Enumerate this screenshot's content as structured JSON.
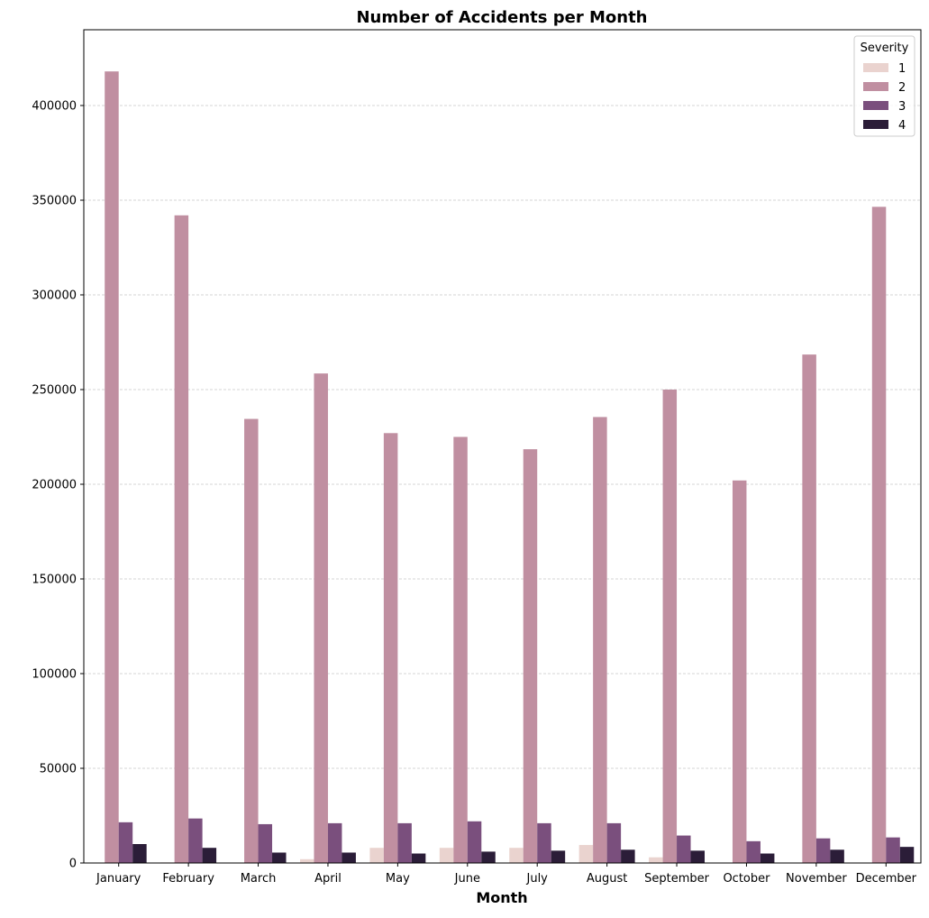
{
  "chart_data": {
    "type": "bar",
    "title": "Number of Accidents per Month",
    "xlabel": "Month",
    "ylabel": "",
    "categories": [
      "January",
      "February",
      "March",
      "April",
      "May",
      "June",
      "July",
      "August",
      "September",
      "October",
      "November",
      "December"
    ],
    "legend_title": "Severity",
    "legend_position": "top-right",
    "ylim": [
      0,
      440000
    ],
    "yticks": [
      0,
      50000,
      100000,
      150000,
      200000,
      250000,
      300000,
      350000,
      400000
    ],
    "grid": "horizontal dashed",
    "series": [
      {
        "name": "1",
        "color": "#ead3cf",
        "values": [
          200,
          300,
          100,
          2000,
          8000,
          8000,
          8000,
          9500,
          3000,
          100,
          100,
          100
        ]
      },
      {
        "name": "2",
        "color": "#c08fa1",
        "values": [
          418000,
          342000,
          234500,
          258500,
          227000,
          225000,
          218500,
          235500,
          250000,
          202000,
          268500,
          346500
        ]
      },
      {
        "name": "3",
        "color": "#7a4f7d",
        "values": [
          21500,
          23500,
          20500,
          21000,
          21000,
          22000,
          21000,
          21000,
          14500,
          11500,
          13000,
          13500
        ]
      },
      {
        "name": "4",
        "color": "#2b1d38",
        "values": [
          10000,
          8000,
          5500,
          5500,
          5000,
          6000,
          6500,
          7000,
          6500,
          5000,
          7000,
          8500
        ]
      }
    ]
  }
}
